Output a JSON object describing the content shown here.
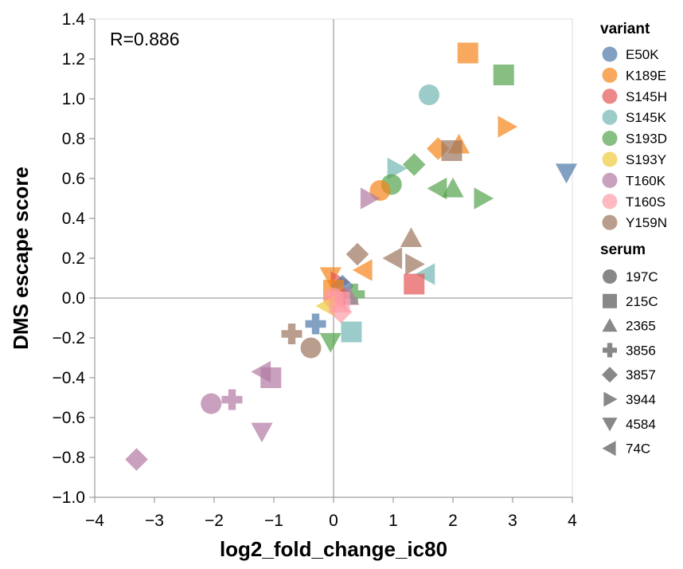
{
  "chart_data": {
    "type": "scatter",
    "xlabel": "log2_fold_change_ic80",
    "ylabel": "DMS escape score",
    "xlim": [
      -4.0,
      4.0
    ],
    "ylim": [
      -1.0,
      1.4
    ],
    "x_ticks": [
      -4,
      -3,
      -2,
      -1,
      0,
      1,
      2,
      3,
      4
    ],
    "x_tick_labels": [
      "−4",
      "−3",
      "−2",
      "−1",
      "0",
      "1",
      "2",
      "3",
      "4"
    ],
    "y_ticks": [
      -1.0,
      -0.8,
      -0.6,
      -0.4,
      -0.2,
      0.0,
      0.2,
      0.4,
      0.6,
      0.8,
      1.0,
      1.2,
      1.4
    ],
    "y_tick_labels": [
      "−1.0",
      "−0.8",
      "−0.6",
      "−0.4",
      "−0.2",
      "0.0",
      "0.2",
      "0.4",
      "0.6",
      "0.8",
      "1.0",
      "1.2",
      "1.4"
    ],
    "reference_lines": {
      "x": 0,
      "y": 0
    },
    "annotation": "R=0.886",
    "grid": false,
    "legend_placement": "right",
    "variant_legend_title": "variant",
    "variants": [
      {
        "name": "E50K",
        "color": "#4c78a8"
      },
      {
        "name": "K189E",
        "color": "#f58518"
      },
      {
        "name": "S145H",
        "color": "#e45756"
      },
      {
        "name": "S145K",
        "color": "#72b7b2"
      },
      {
        "name": "S193D",
        "color": "#54a24b"
      },
      {
        "name": "S193Y",
        "color": "#eeca3b"
      },
      {
        "name": "T160K",
        "color": "#b279a2"
      },
      {
        "name": "T160S",
        "color": "#ff9da6"
      },
      {
        "name": "Y159N",
        "color": "#9d755d"
      }
    ],
    "serum_legend_title": "serum",
    "sera": [
      {
        "name": "197C",
        "shape": "circle"
      },
      {
        "name": "215C",
        "shape": "square"
      },
      {
        "name": "2365",
        "shape": "triangle-up"
      },
      {
        "name": "3856",
        "shape": "cross"
      },
      {
        "name": "3857",
        "shape": "diamond"
      },
      {
        "name": "3944",
        "shape": "triangle-right"
      },
      {
        "name": "4584",
        "shape": "triangle-down"
      },
      {
        "name": "74C",
        "shape": "triangle-left"
      }
    ],
    "points": [
      {
        "variant": "K189E",
        "serum": "215C",
        "x": 2.25,
        "y": 1.23
      },
      {
        "variant": "S193D",
        "serum": "215C",
        "x": 2.85,
        "y": 1.12
      },
      {
        "variant": "S145K",
        "serum": "197C",
        "x": 1.6,
        "y": 1.02
      },
      {
        "variant": "K189E",
        "serum": "3944",
        "x": 2.9,
        "y": 0.86
      },
      {
        "variant": "K189E",
        "serum": "3857",
        "x": 1.75,
        "y": 0.75
      },
      {
        "variant": "K189E",
        "serum": "2365",
        "x": 2.1,
        "y": 0.77
      },
      {
        "variant": "Y159N",
        "serum": "215C",
        "x": 1.98,
        "y": 0.74
      },
      {
        "variant": "E50K",
        "serum": "4584",
        "x": 3.9,
        "y": 0.63
      },
      {
        "variant": "S193D",
        "serum": "3857",
        "x": 1.35,
        "y": 0.67
      },
      {
        "variant": "S145K",
        "serum": "3944",
        "x": 1.05,
        "y": 0.65
      },
      {
        "variant": "S193D",
        "serum": "197C",
        "x": 0.97,
        "y": 0.57
      },
      {
        "variant": "K189E",
        "serum": "197C",
        "x": 0.78,
        "y": 0.54
      },
      {
        "variant": "S193D",
        "serum": "74C",
        "x": 1.75,
        "y": 0.55
      },
      {
        "variant": "S193D",
        "serum": "2365",
        "x": 2.0,
        "y": 0.55
      },
      {
        "variant": "S193D",
        "serum": "3944",
        "x": 2.5,
        "y": 0.5
      },
      {
        "variant": "T160K",
        "serum": "3944",
        "x": 0.6,
        "y": 0.5
      },
      {
        "variant": "Y159N",
        "serum": "2365",
        "x": 1.3,
        "y": 0.3
      },
      {
        "variant": "Y159N",
        "serum": "3857",
        "x": 0.4,
        "y": 0.22
      },
      {
        "variant": "Y159N",
        "serum": "74C",
        "x": 1.0,
        "y": 0.2
      },
      {
        "variant": "Y159N",
        "serum": "3944",
        "x": 1.35,
        "y": 0.17
      },
      {
        "variant": "K189E",
        "serum": "74C",
        "x": 0.5,
        "y": 0.14
      },
      {
        "variant": "S145K",
        "serum": "74C",
        "x": 1.55,
        "y": 0.12
      },
      {
        "variant": "S145H",
        "serum": "215C",
        "x": 1.35,
        "y": 0.07
      },
      {
        "variant": "K189E",
        "serum": "4584",
        "x": -0.05,
        "y": 0.11
      },
      {
        "variant": "S145H",
        "serum": "3944",
        "x": 0.1,
        "y": 0.08
      },
      {
        "variant": "E50K",
        "serum": "3857",
        "x": 0.15,
        "y": 0.06
      },
      {
        "variant": "K189E",
        "serum": "215C",
        "x": 0.0,
        "y": 0.04
      },
      {
        "variant": "S193D",
        "serum": "3856",
        "x": 0.35,
        "y": 0.02
      },
      {
        "variant": "T160K",
        "serum": "2365",
        "x": 0.25,
        "y": 0.01
      },
      {
        "variant": "S145H",
        "serum": "74C",
        "x": 0.05,
        "y": 0.0
      },
      {
        "variant": "T160S",
        "serum": "197C",
        "x": 0.0,
        "y": 0.0
      },
      {
        "variant": "S193Y",
        "serum": "74C",
        "x": -0.12,
        "y": -0.04
      },
      {
        "variant": "T160S",
        "serum": "215C",
        "x": 0.1,
        "y": -0.02
      },
      {
        "variant": "T160S",
        "serum": "3857",
        "x": 0.12,
        "y": -0.07
      },
      {
        "variant": "E50K",
        "serum": "3856",
        "x": -0.3,
        "y": -0.13
      },
      {
        "variant": "S145K",
        "serum": "215C",
        "x": 0.3,
        "y": -0.17
      },
      {
        "variant": "S193D",
        "serum": "4584",
        "x": -0.05,
        "y": -0.22
      },
      {
        "variant": "Y159N",
        "serum": "3856",
        "x": -0.7,
        "y": -0.18
      },
      {
        "variant": "Y159N",
        "serum": "197C",
        "x": -0.38,
        "y": -0.25
      },
      {
        "variant": "T160K",
        "serum": "215C",
        "x": -1.05,
        "y": -0.4
      },
      {
        "variant": "T160K",
        "serum": "74C",
        "x": -1.2,
        "y": -0.37
      },
      {
        "variant": "T160K",
        "serum": "197C",
        "x": -2.05,
        "y": -0.53
      },
      {
        "variant": "T160K",
        "serum": "3856",
        "x": -1.7,
        "y": -0.51
      },
      {
        "variant": "T160K",
        "serum": "4584",
        "x": -1.2,
        "y": -0.67
      },
      {
        "variant": "T160K",
        "serum": "3857",
        "x": -3.3,
        "y": -0.81
      }
    ]
  }
}
